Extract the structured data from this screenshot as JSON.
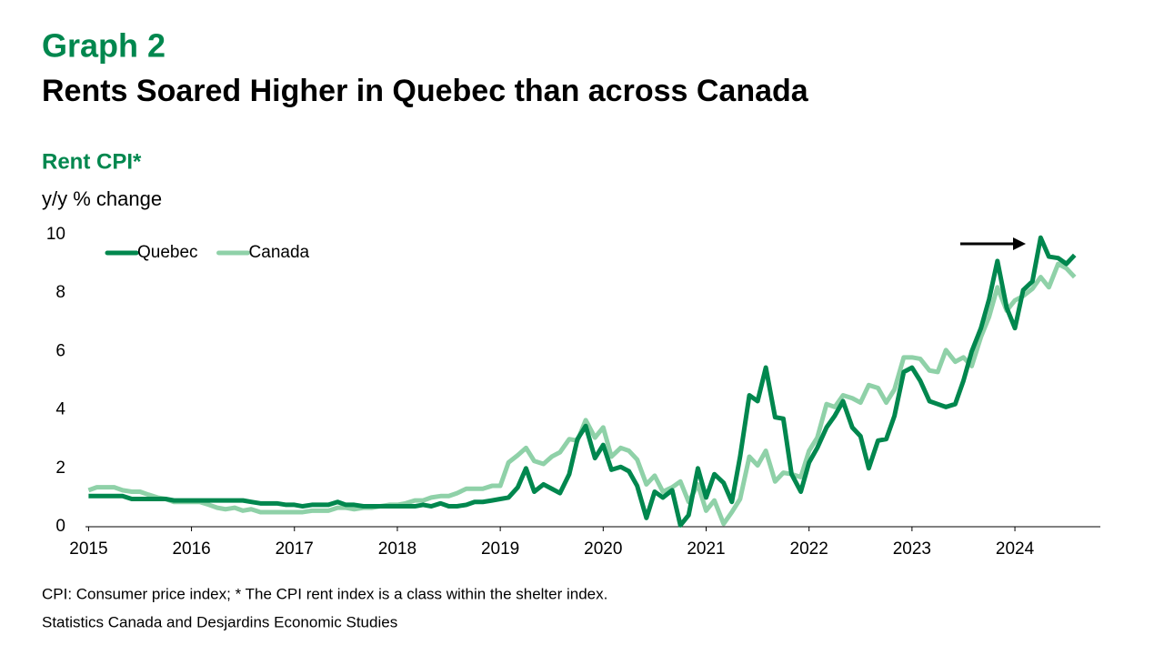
{
  "chart_data": {
    "type": "line",
    "label": "Graph 2",
    "title": "Rents Soared Higher in Quebec than across Canada",
    "subtitle": "Rent CPI*",
    "y_label": "y/y % change",
    "footnote": "CPI: Consumer price index; * The CPI rent index is a class within the shelter index.",
    "source": "Statistics Canada and Desjardins Economic Studies",
    "x": [
      2015,
      2015.08,
      2015.17,
      2015.25,
      2015.33,
      2015.42,
      2015.5,
      2015.58,
      2015.67,
      2015.75,
      2015.83,
      2015.92,
      2016,
      2016.08,
      2016.17,
      2016.25,
      2016.33,
      2016.42,
      2016.5,
      2016.58,
      2016.67,
      2016.75,
      2016.83,
      2016.92,
      2017,
      2017.08,
      2017.17,
      2017.25,
      2017.33,
      2017.42,
      2017.5,
      2017.58,
      2017.67,
      2017.75,
      2017.83,
      2017.92,
      2018,
      2018.08,
      2018.17,
      2018.25,
      2018.33,
      2018.42,
      2018.5,
      2018.58,
      2018.67,
      2018.75,
      2018.83,
      2018.92,
      2019,
      2019.08,
      2019.17,
      2019.25,
      2019.33,
      2019.42,
      2019.5,
      2019.58,
      2019.67,
      2019.75,
      2019.83,
      2019.92,
      2020,
      2020.08,
      2020.17,
      2020.25,
      2020.33,
      2020.42,
      2020.5,
      2020.58,
      2020.67,
      2020.75,
      2020.83,
      2020.92,
      2021,
      2021.08,
      2021.17,
      2021.25,
      2021.33,
      2021.42,
      2021.5,
      2021.58,
      2021.67,
      2021.75,
      2021.83,
      2021.92,
      2022,
      2022.08,
      2022.17,
      2022.25,
      2022.33,
      2022.42,
      2022.5,
      2022.58,
      2022.67,
      2022.75,
      2022.83,
      2022.92,
      2023,
      2023.08,
      2023.17,
      2023.25,
      2023.33,
      2023.42,
      2023.5,
      2023.58,
      2023.67,
      2023.75,
      2023.83,
      2023.92,
      2024,
      2024.08,
      2024.17,
      2024.25,
      2024.33,
      2024.42,
      2024.5,
      2024.58
    ],
    "series": [
      {
        "name": "Quebec",
        "color": "#00874e",
        "values": [
          1.05,
          1.05,
          1.05,
          1.05,
          1.05,
          0.95,
          0.95,
          0.95,
          0.95,
          0.95,
          0.9,
          0.9,
          0.9,
          0.9,
          0.9,
          0.9,
          0.9,
          0.9,
          0.9,
          0.85,
          0.8,
          0.8,
          0.8,
          0.75,
          0.75,
          0.7,
          0.75,
          0.75,
          0.75,
          0.85,
          0.75,
          0.75,
          0.7,
          0.7,
          0.7,
          0.7,
          0.7,
          0.7,
          0.7,
          0.75,
          0.7,
          0.8,
          0.7,
          0.7,
          0.75,
          0.85,
          0.85,
          0.9,
          0.95,
          1.0,
          1.35,
          2.0,
          1.2,
          1.45,
          1.3,
          1.15,
          1.8,
          3.0,
          3.45,
          2.35,
          2.8,
          1.95,
          2.05,
          1.9,
          1.4,
          0.3,
          1.2,
          1.0,
          1.25,
          0.05,
          0.4,
          2.0,
          1.0,
          1.8,
          1.5,
          0.85,
          2.4,
          4.5,
          4.3,
          5.45,
          3.75,
          3.7,
          1.8,
          1.2,
          2.2,
          2.7,
          3.4,
          3.8,
          4.3,
          3.4,
          3.1,
          2.0,
          2.95,
          3.0,
          3.8,
          5.3,
          5.45,
          5.0,
          4.3,
          4.2,
          4.1,
          4.2,
          5.0,
          6.0,
          6.8,
          7.8,
          9.1,
          7.5,
          6.8,
          8.1,
          8.4,
          9.9,
          9.25,
          9.2,
          9.0,
          9.3
        ]
      },
      {
        "name": "Canada",
        "color": "#8fd1a8",
        "values": [
          1.25,
          1.35,
          1.35,
          1.35,
          1.25,
          1.2,
          1.2,
          1.1,
          1.0,
          0.95,
          0.85,
          0.85,
          0.85,
          0.85,
          0.75,
          0.65,
          0.6,
          0.65,
          0.55,
          0.6,
          0.5,
          0.5,
          0.5,
          0.5,
          0.5,
          0.5,
          0.55,
          0.55,
          0.55,
          0.65,
          0.65,
          0.6,
          0.65,
          0.65,
          0.7,
          0.75,
          0.75,
          0.8,
          0.9,
          0.9,
          1.0,
          1.05,
          1.05,
          1.15,
          1.3,
          1.3,
          1.3,
          1.4,
          1.4,
          2.2,
          2.45,
          2.7,
          2.25,
          2.15,
          2.4,
          2.55,
          3.0,
          2.95,
          3.65,
          3.05,
          3.4,
          2.4,
          2.7,
          2.6,
          2.3,
          1.45,
          1.75,
          1.2,
          1.35,
          1.55,
          0.85,
          1.45,
          0.55,
          0.9,
          0.1,
          0.5,
          0.95,
          2.4,
          2.1,
          2.6,
          1.55,
          1.85,
          1.8,
          1.7,
          2.6,
          3.05,
          4.2,
          4.1,
          4.5,
          4.4,
          4.25,
          4.85,
          4.75,
          4.25,
          4.7,
          5.8,
          5.8,
          5.75,
          5.35,
          5.3,
          6.05,
          5.65,
          5.8,
          5.5,
          6.5,
          7.2,
          8.2,
          7.4,
          7.75,
          7.9,
          8.15,
          8.55,
          8.2,
          9.0,
          8.85,
          8.55
        ]
      }
    ],
    "xlim": [
      2014.97,
      2024.83
    ],
    "xticks": [
      2015,
      2016,
      2017,
      2018,
      2019,
      2020,
      2021,
      2022,
      2023,
      2024
    ],
    "ylim": [
      0,
      10
    ],
    "yticks": [
      0,
      2,
      4,
      6,
      8,
      10
    ],
    "grid": false,
    "legend": "top-left"
  }
}
